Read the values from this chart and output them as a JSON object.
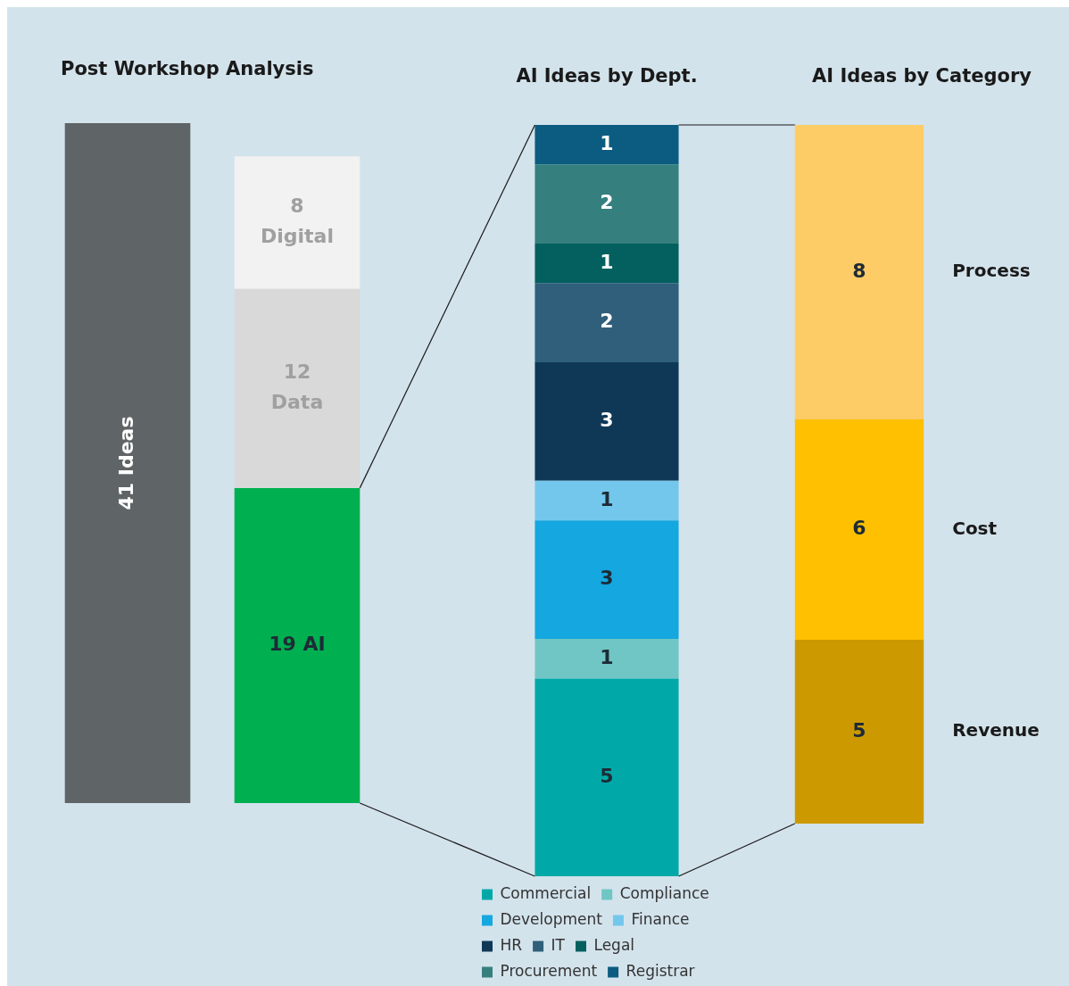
{
  "chart_data": [
    {
      "type": "bar",
      "title": "Post Workshop Analysis",
      "categories": [
        null,
        null
      ],
      "stacked": true,
      "tick_labels": false,
      "series": [
        {
          "color": "#5f6566",
          "values": [
            41,
            null
          ],
          "value_labels": [
            "41 Ideas",
            null
          ]
        },
        {
          "color": "#00b050",
          "values": [
            null,
            19
          ],
          "value_labels": [
            null,
            "19 AI"
          ]
        },
        {
          "color": "#d9d9d9",
          "values": [
            null,
            12
          ],
          "value_labels": [
            null,
            "12\nData"
          ]
        },
        {
          "color": "#f2f2f2",
          "values": [
            null,
            8
          ],
          "value_labels": [
            null,
            "8\nDigital"
          ]
        }
      ]
    },
    {
      "type": "bar",
      "title": "AI Ideas by Dept.",
      "categories": [
        null
      ],
      "stacked": true,
      "tick_labels": false,
      "data_labels": true,
      "legend": "bottom",
      "series": [
        {
          "name": "Commercial",
          "color": "#00a9a8",
          "values": [
            5
          ]
        },
        {
          "name": "Compliance",
          "color": "#70c6c4",
          "values": [
            1
          ]
        },
        {
          "name": "Development",
          "color": "#14a7e0",
          "values": [
            3
          ]
        },
        {
          "name": "Finance",
          "color": "#73c7ec",
          "values": [
            1
          ]
        },
        {
          "name": "HR",
          "color": "#0e3856",
          "values": [
            3
          ]
        },
        {
          "name": "IT",
          "color": "#2f5f7a",
          "values": [
            2
          ]
        },
        {
          "name": "Legal",
          "color": "#03605f",
          "values": [
            1
          ]
        },
        {
          "name": "Procurement",
          "color": "#357f7f",
          "values": [
            2
          ]
        },
        {
          "name": "Registrar",
          "color": "#0b5c80",
          "values": [
            1
          ]
        }
      ]
    },
    {
      "type": "bar",
      "title": "AI Ideas by Category",
      "categories": [
        null
      ],
      "stacked": true,
      "tick_labels": false,
      "data_labels": true,
      "series": [
        {
          "name": "Revenue",
          "color": "#cc9a00",
          "values": [
            5
          ]
        },
        {
          "name": "Cost",
          "color": "#fec000",
          "values": [
            6
          ]
        },
        {
          "name": "Process",
          "color": "#fecc66",
          "values": [
            8
          ]
        }
      ]
    }
  ]
}
